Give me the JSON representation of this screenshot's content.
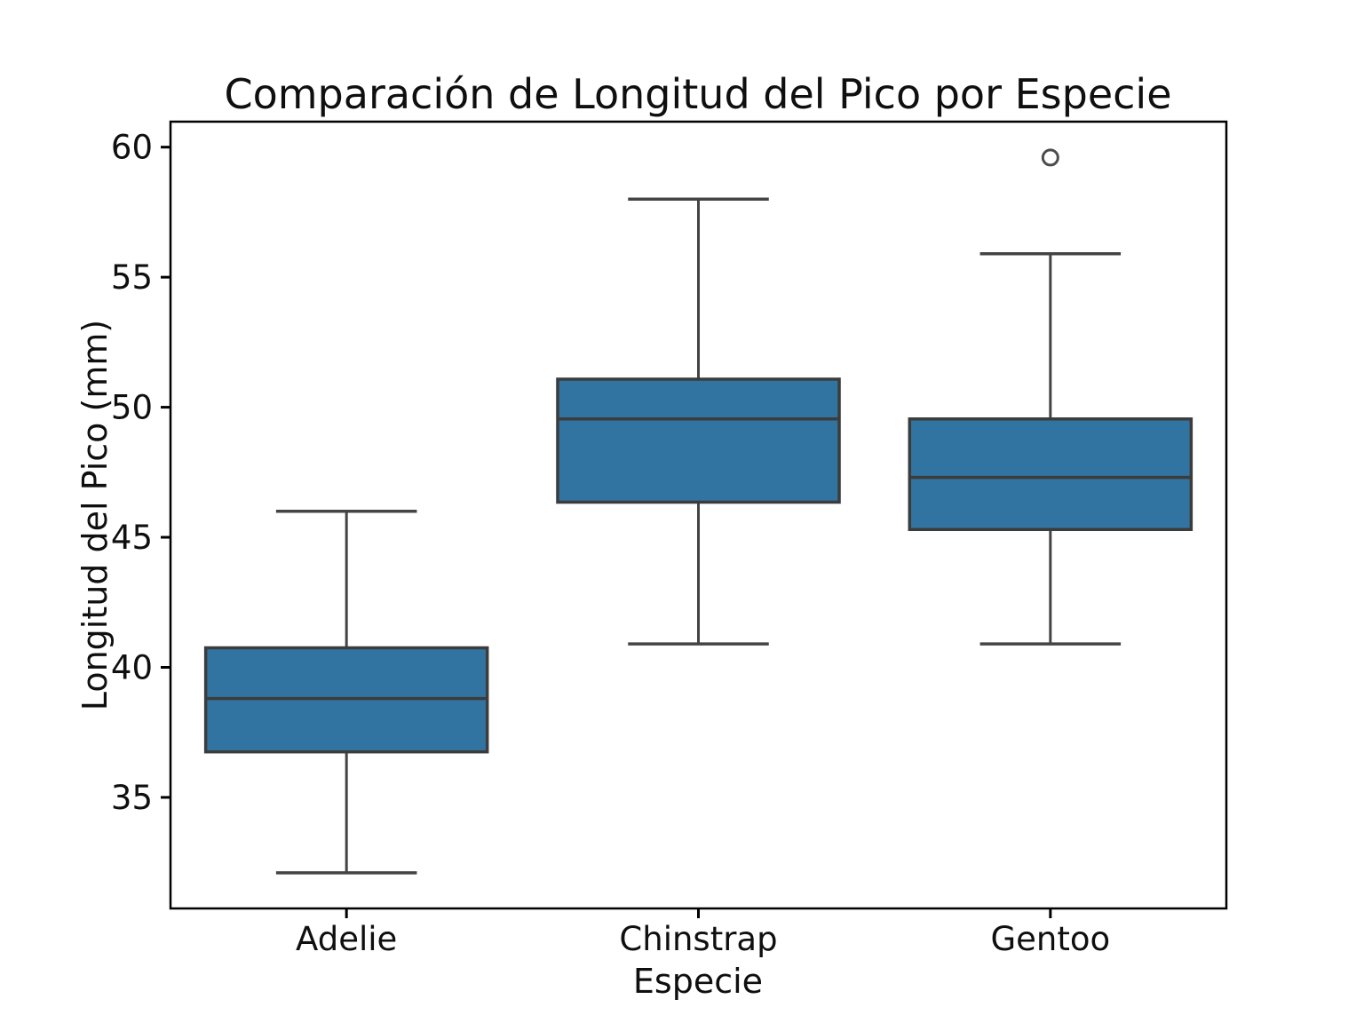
{
  "chart_data": {
    "type": "boxplot",
    "title": "Comparación de Longitud del Pico por Especie",
    "xlabel": "Especie",
    "ylabel": "Longitud del Pico (mm)",
    "categories": [
      "Adelie",
      "Chinstrap",
      "Gentoo"
    ],
    "ylim": [
      30.73,
      60.98
    ],
    "yticks": [
      35,
      40,
      45,
      50,
      55,
      60
    ],
    "grid": false,
    "legend": "none",
    "colors": {
      "box_fill": "#3274A1",
      "box_edge": "#3c3c3c",
      "median_line": "#3c3c3c",
      "whisker": "#444444",
      "outlier_edge": "#4c4c4c",
      "spine": "#000000"
    },
    "series": [
      {
        "name": "Adelie",
        "whisker_low": 32.1,
        "q1": 36.75,
        "median": 38.8,
        "q3": 40.75,
        "whisker_high": 46.0,
        "outliers": []
      },
      {
        "name": "Chinstrap",
        "whisker_low": 40.9,
        "q1": 46.35,
        "median": 49.55,
        "q3": 51.08,
        "whisker_high": 58.0,
        "outliers": []
      },
      {
        "name": "Gentoo",
        "whisker_low": 40.9,
        "q1": 45.3,
        "median": 47.3,
        "q3": 49.55,
        "whisker_high": 55.9,
        "outliers": [
          59.6
        ]
      }
    ]
  }
}
